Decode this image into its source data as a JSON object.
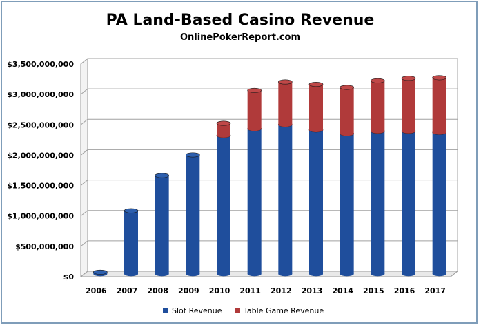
{
  "chart_data": {
    "type": "bar",
    "stacked": true,
    "title": "PA Land-Based Casino Revenue",
    "subtitle": "OnlinePokerReport.com",
    "xlabel": "",
    "ylabel": "",
    "categories": [
      "2006",
      "2007",
      "2008",
      "2009",
      "2010",
      "2011",
      "2012",
      "2013",
      "2014",
      "2015",
      "2016",
      "2017"
    ],
    "series": [
      {
        "name": "Slot Revenue",
        "color": "#1f4e9c",
        "values": [
          30000000,
          1040000000,
          1620000000,
          1960000000,
          2280000000,
          2390000000,
          2460000000,
          2370000000,
          2310000000,
          2350000000,
          2350000000,
          2330000000
        ]
      },
      {
        "name": "Table Game Revenue",
        "color": "#b03a3a",
        "values": [
          0,
          0,
          0,
          0,
          200000000,
          630000000,
          700000000,
          750000000,
          760000000,
          830000000,
          870000000,
          900000000
        ]
      }
    ],
    "ylim": [
      0,
      3500000000
    ],
    "yticks": [
      0,
      500000000,
      1000000000,
      1500000000,
      2000000000,
      2500000000,
      3000000000,
      3500000000
    ],
    "ytick_labels": [
      "$0",
      "$500,000,000",
      "$1,000,000,000",
      "$1,500,000,000",
      "$2,000,000,000",
      "$2,500,000,000",
      "$3,000,000,000",
      "$3,500,000,000"
    ],
    "grid": true,
    "legend": "bottom"
  }
}
